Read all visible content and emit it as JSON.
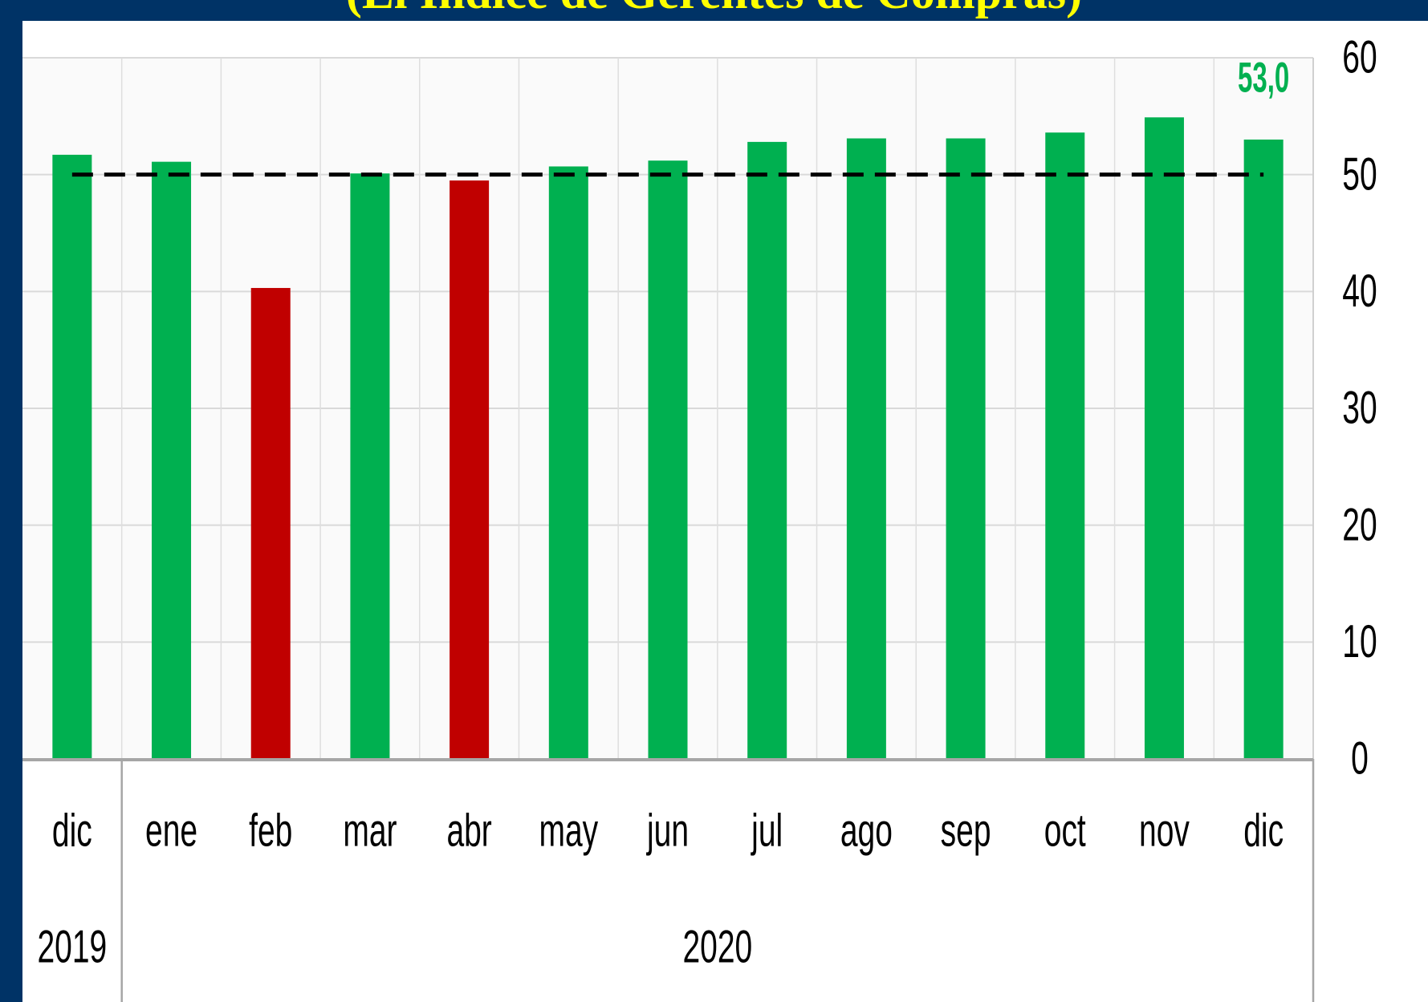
{
  "chart_data": {
    "type": "bar",
    "title": "(El Índice de Gerentes de Compras)",
    "categories": [
      "dic",
      "ene",
      "feb",
      "mar",
      "abr",
      "may",
      "jun",
      "jul",
      "ago",
      "sep",
      "oct",
      "nov",
      "dic"
    ],
    "year_groups": [
      {
        "label": "2019",
        "count": 1
      },
      {
        "label": "2020",
        "count": 12
      }
    ],
    "values": [
      51.7,
      51.1,
      40.3,
      50.1,
      49.5,
      50.7,
      51.2,
      52.8,
      53.1,
      53.1,
      53.6,
      54.9,
      53.0
    ],
    "colors": [
      "#00b050",
      "#00b050",
      "#c00000",
      "#00b050",
      "#c00000",
      "#00b050",
      "#00b050",
      "#00b050",
      "#00b050",
      "#00b050",
      "#00b050",
      "#00b050",
      "#00b050"
    ],
    "reference_line": {
      "value": 50,
      "style": "dashed",
      "color": "#000000"
    },
    "last_value_label": "53,0",
    "last_value_label_color": "#00b050",
    "yticks": [
      "0",
      "10",
      "20",
      "30",
      "40",
      "50",
      "60"
    ],
    "ylim": [
      0,
      60
    ],
    "y_axis_side": "right",
    "grid": true
  }
}
